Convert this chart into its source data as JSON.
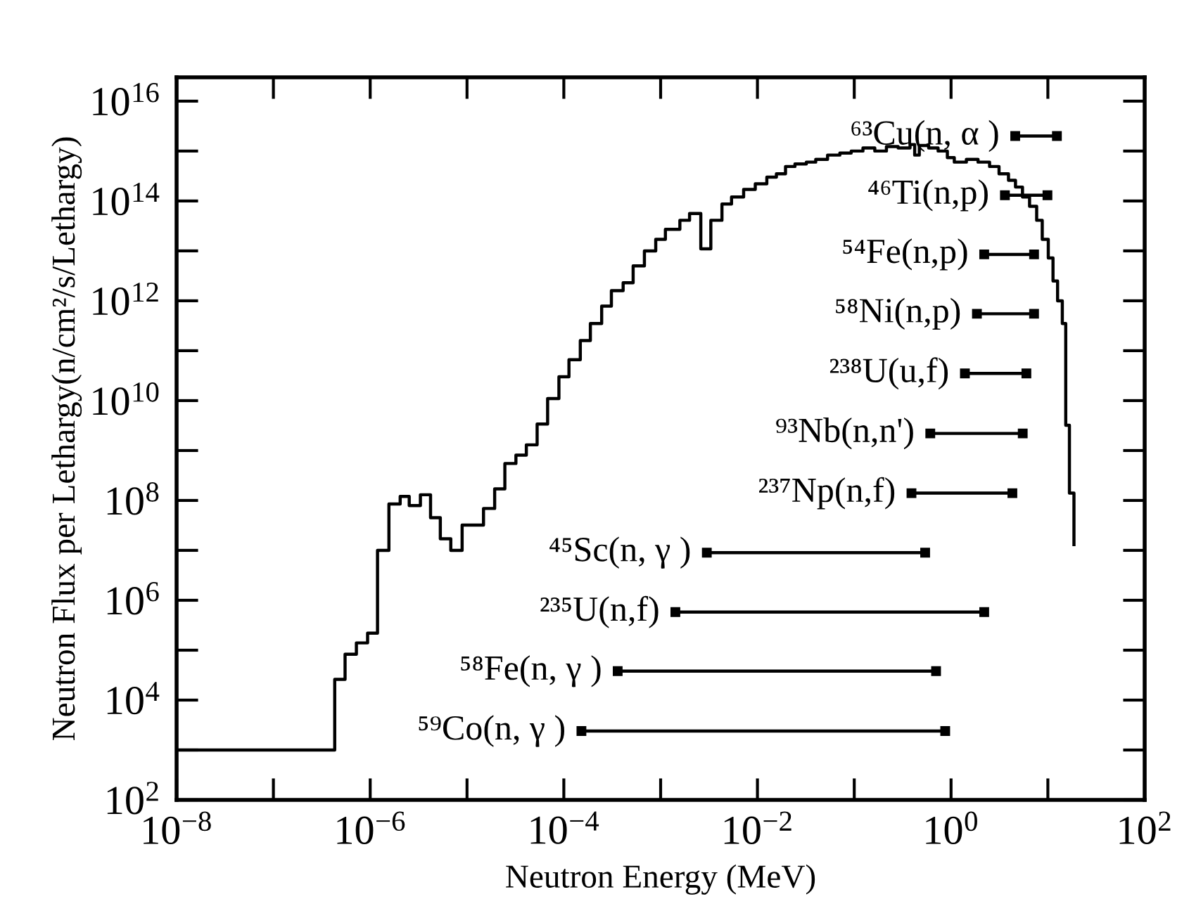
{
  "chart_data": {
    "type": "step",
    "xlabel": "Neutron Energy (MeV)",
    "ylabel": "Neutron Flux per Lethargy(n/cm²/s/Lethargy)",
    "log": "xy",
    "xlim": [
      1e-08,
      100
    ],
    "ylim": [
      100,
      3e+16
    ],
    "xticks": [
      {
        "value": 1e-08,
        "label": "10$^{−8}$"
      },
      {
        "value": 1e-07,
        "label": null
      },
      {
        "value": 1e-06,
        "label": "10$^{−6}$"
      },
      {
        "value": 1e-05,
        "label": null
      },
      {
        "value": 0.0001,
        "label": "10$^{−4}$"
      },
      {
        "value": 0.001,
        "label": null
      },
      {
        "value": 0.01,
        "label": "10$^{−2}$"
      },
      {
        "value": 0.1,
        "label": null
      },
      {
        "value": 1,
        "label": "10$^{0}$"
      },
      {
        "value": 10,
        "label": null
      },
      {
        "value": 100,
        "label": "10$^{2}$"
      }
    ],
    "yticks": [
      {
        "value": 100,
        "label": "10$^{2}$"
      },
      {
        "value": 1000.0,
        "label": null
      },
      {
        "value": 10000.0,
        "label": "10$^{4}$"
      },
      {
        "value": 100000.0,
        "label": null
      },
      {
        "value": 1000000.0,
        "label": "10$^{6}$"
      },
      {
        "value": 10000000.0,
        "label": null
      },
      {
        "value": 100000000.0,
        "label": "10$^{8}$"
      },
      {
        "value": 1000000000.0,
        "label": null
      },
      {
        "value": 10000000000.0,
        "label": "10$^{10}$"
      },
      {
        "value": 100000000000.0,
        "label": null
      },
      {
        "value": 1000000000000.0,
        "label": "10$^{12}$"
      },
      {
        "value": 10000000000000.0,
        "label": null
      },
      {
        "value": 100000000000000.0,
        "label": "10$^{14}$"
      },
      {
        "value": 1000000000000000.0,
        "label": null
      },
      {
        "value": 1e+16,
        "label": "10$^{16}$"
      }
    ],
    "series": [
      {
        "color": "#000000",
        "x": [
          1e-08,
          4.3e-07,
          5.5e-07,
          7.2e-07,
          9.4e-07,
          1.19e-06,
          1.56e-06,
          2.04e-06,
          2.53e-06,
          3.3e-06,
          4.2e-06,
          5.3e-06,
          6.8e-06,
          8.9e-06,
          1.48e-05,
          1.93e-05,
          2.46e-05,
          3.2e-05,
          4.1e-05,
          5.3e-05,
          6.8e-05,
          8.9e-05,
          0.000113,
          0.000148,
          0.000188,
          0.000246,
          0.00031,
          0.00041,
          0.00052,
          0.00068,
          0.00089,
          0.00112,
          0.00158,
          0.00199,
          0.0026,
          0.0033,
          0.0043,
          0.0054,
          0.0072,
          0.0095,
          0.0125,
          0.0157,
          0.0195,
          0.0244,
          0.032,
          0.04,
          0.053,
          0.071,
          0.093,
          0.123,
          0.163,
          0.215,
          0.284,
          0.377,
          0.421,
          0.47,
          0.587,
          0.735,
          0.916,
          1.08,
          1.44,
          1.9,
          2.5,
          3.13,
          3.92,
          4.63,
          5.47,
          6.47,
          7.66,
          8.75,
          10.1,
          11.3,
          12.6,
          14.1,
          15.3,
          16.7,
          18.6
        ],
        "values": [
          1000.0,
          26000.0,
          83000.0,
          140000.0,
          220000.0,
          10000000.0,
          85000000.0,
          120000000.0,
          79000000.0,
          130000000.0,
          45000000.0,
          17000000.0,
          10000000.0,
          32000000.0,
          69000000.0,
          170000000.0,
          550000000.0,
          810000000.0,
          1300000000.0,
          3400000000.0,
          11000000000.0,
          30000000000.0,
          66000000000.0,
          160000000000.0,
          350000000000.0,
          780000000000.0,
          1600000000000.0,
          2300000000000.0,
          5000000000000.0,
          10000000000000.0,
          17000000000000.0,
          27000000000000.0,
          41000000000000.0,
          56000000000000.0,
          11000000000000.0,
          41000000000000.0,
          87000000000000.0,
          120000000000000.0,
          170000000000000.0,
          220000000000000.0,
          300000000000000.0,
          350000000000000.0,
          490000000000000.0,
          550000000000000.0,
          600000000000000.0,
          680000000000000.0,
          830000000000000.0,
          910000000000000.0,
          1000000000000000.0,
          1150000000000000.0,
          1000000000000000.0,
          1230000000000000.0,
          1150000000000000.0,
          1350000000000000.0,
          830000000000000.0,
          1290000000000000.0,
          1150000000000000.0,
          1000000000000000.0,
          740000000000000.0,
          600000000000000.0,
          680000000000000.0,
          600000000000000.0,
          490000000000000.0,
          350000000000000.0,
          260000000000000.0,
          190000000000000.0,
          120000000000000.0,
          78000000000000.0,
          41000000000000.0,
          17000000000000.0,
          7200000000000.0,
          2500000000000.0,
          1000000000000.0,
          350000000000.0,
          3200000000.0,
          140000000.0,
          13000000.0
        ]
      },
      {
        "type": "line",
        "marker": "square",
        "color": "#000000",
        "name": "⁶³Cu(n, α )",
        "x": [
          4.6,
          12.4
        ],
        "values": [
          2000000000000000.0,
          2000000000000000.0
        ]
      },
      {
        "type": "line",
        "marker": "square",
        "color": "#000000",
        "name": "⁴⁶Ti(n,p)",
        "x": [
          3.6,
          9.9
        ],
        "values": [
          130000000000000.0,
          130000000000000.0
        ]
      },
      {
        "type": "line",
        "marker": "square",
        "color": "#000000",
        "name": "⁵⁴Fe(n,p)",
        "x": [
          2.2,
          7.2
        ],
        "values": [
          8500000000000.0,
          8500000000000.0
        ]
      },
      {
        "type": "line",
        "marker": "square",
        "color": "#000000",
        "name": "⁵⁸Ni(n,p)",
        "x": [
          1.85,
          7.2
        ],
        "values": [
          550000000000.0,
          550000000000.0
        ]
      },
      {
        "type": "line",
        "marker": "square",
        "color": "#000000",
        "name": "²³⁸U(u,f)",
        "x": [
          1.39,
          6.0
        ],
        "values": [
          35000000000.0,
          35000000000.0
        ]
      },
      {
        "type": "line",
        "marker": "square",
        "color": "#000000",
        "name": "⁹³Nb(n,n')",
        "x": [
          0.61,
          5.5
        ],
        "values": [
          2200000000.0,
          2200000000.0
        ]
      },
      {
        "type": "line",
        "marker": "square",
        "color": "#000000",
        "name": "²³⁷Np(n,f)",
        "x": [
          0.39,
          4.3
        ],
        "values": [
          140000000.0,
          140000000.0
        ]
      },
      {
        "type": "line",
        "marker": "square",
        "color": "#000000",
        "name": "⁴⁵Sc(n, γ )",
        "x": [
          0.003,
          0.54
        ],
        "values": [
          9000000.0,
          9000000.0
        ]
      },
      {
        "type": "line",
        "marker": "square",
        "color": "#000000",
        "name": "²³⁵U(n,f)",
        "x": [
          0.00142,
          2.2
        ],
        "values": [
          580000.0,
          580000.0
        ]
      },
      {
        "type": "line",
        "marker": "square",
        "color": "#000000",
        "name": "⁵⁸Fe(n, γ )",
        "x": [
          0.00036,
          0.7
        ],
        "values": [
          38000.0,
          38000.0
        ]
      },
      {
        "type": "line",
        "marker": "square",
        "color": "#000000",
        "name": "⁵⁹Co(n, γ )",
        "x": [
          0.000152,
          0.87
        ],
        "values": [
          2400.0,
          2400.0
        ]
      }
    ]
  }
}
